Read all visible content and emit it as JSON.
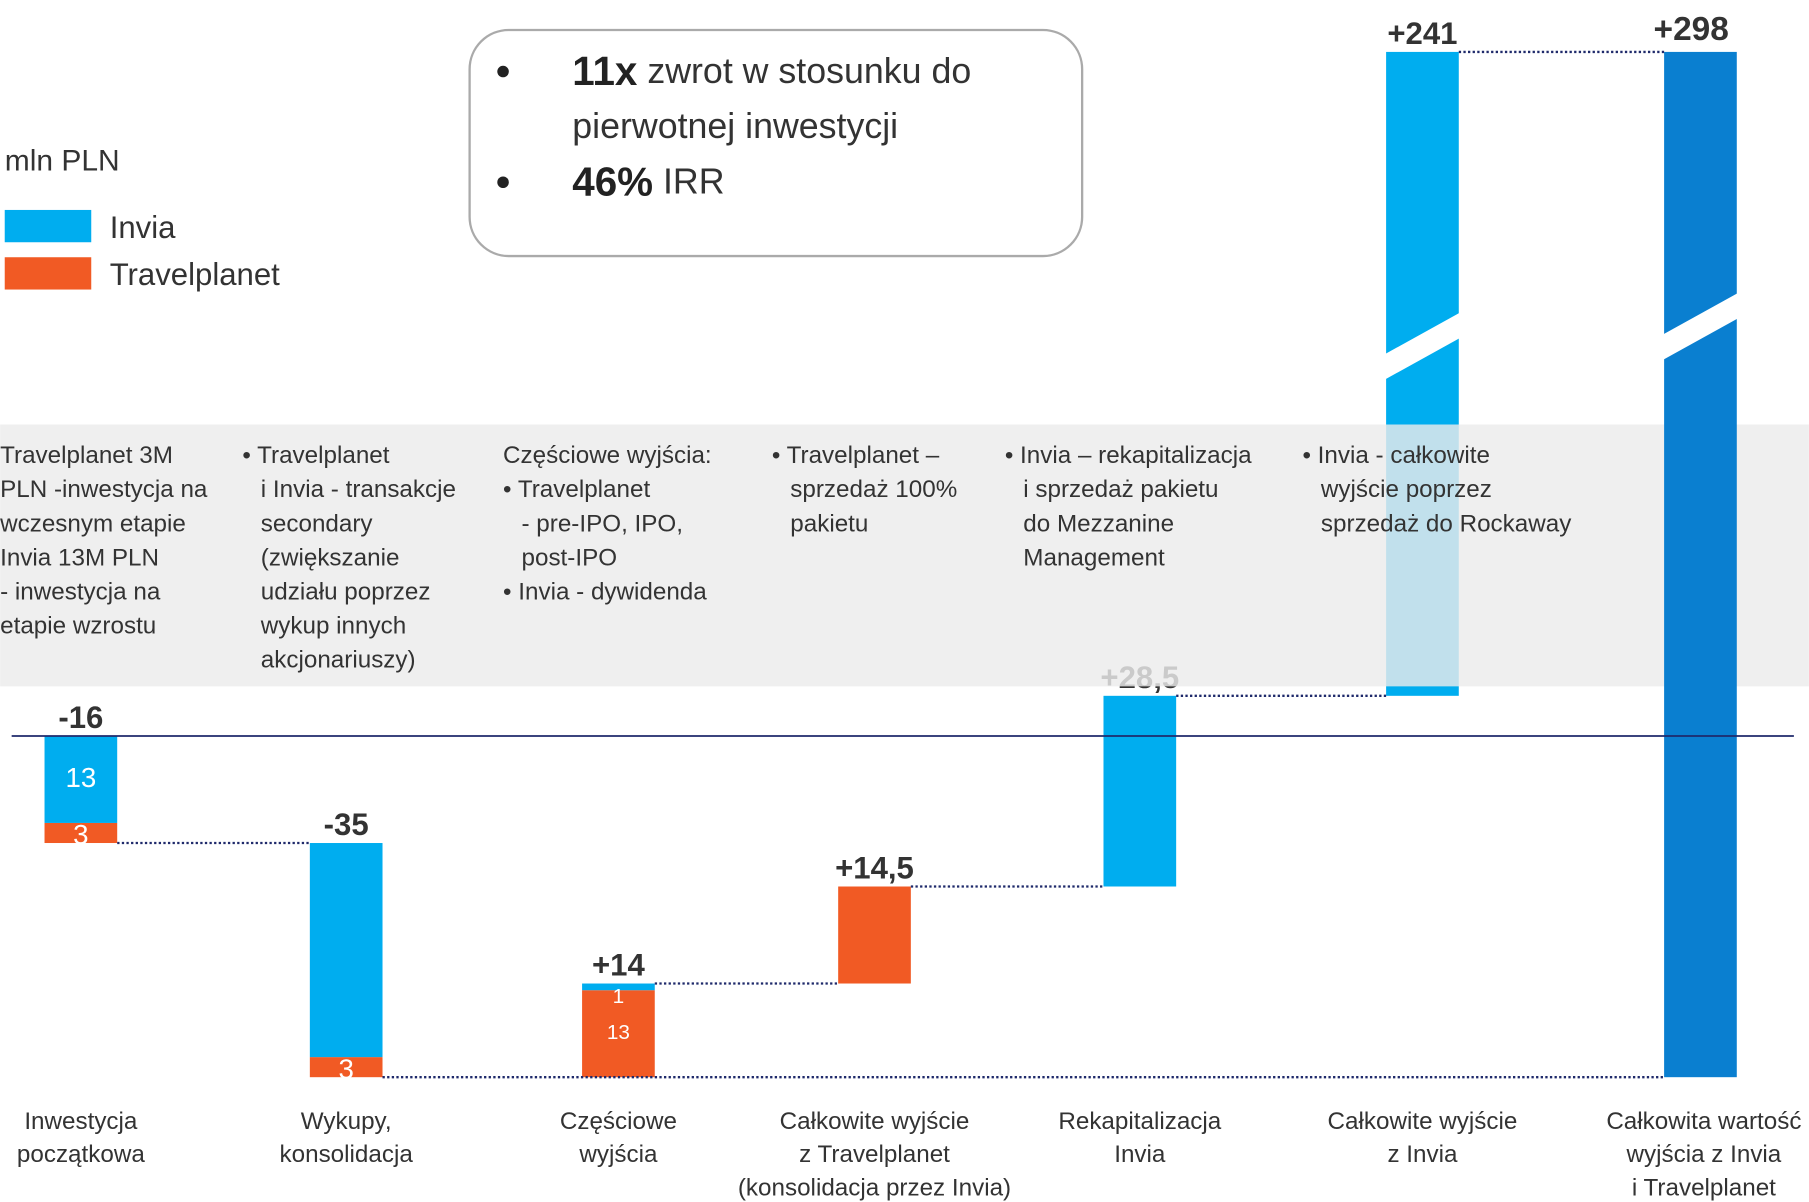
{
  "chart_data": {
    "type": "waterfall",
    "unit_label": "mln PLN",
    "categories": [
      [
        "Inwestycja",
        "początkowa"
      ],
      [
        "Wykupy,",
        "konsolidacja"
      ],
      [
        "Częściowe",
        "wyjścia"
      ],
      [
        "Całkowite wyjście",
        "z Travelplanet",
        "(konsolidacja przez Invia)"
      ],
      [
        "Rekapitalizacja",
        "Invia"
      ],
      [
        "Całkowite wyjście",
        "z Invia"
      ],
      [
        "Całkowita wartość",
        "wyjścia z Invia",
        "i Travelplanet"
      ]
    ],
    "series": [
      {
        "name": "Invia",
        "color": "#00adef",
        "values": [
          13,
          32,
          1,
          null,
          28.5,
          241,
          null
        ]
      },
      {
        "name": "Travelplanet",
        "color": "#f15a24",
        "values": [
          3,
          3,
          13,
          14.5,
          null,
          null,
          null
        ]
      }
    ],
    "totals": [
      -16,
      -35,
      14,
      14.5,
      28.5,
      241,
      298
    ],
    "value_labels": [
      "-16",
      "-35",
      "+14",
      "+14,5",
      "+28,5",
      "+241",
      "+298"
    ],
    "total_color": "#0a7fd0",
    "notes": [
      [
        "Travelplanet 3M",
        "PLN -inwestycja na",
        "wczesnym etapie",
        "Invia 13M PLN",
        "- inwestycja na",
        "etapie wzrostu"
      ],
      [
        "• Travelplanet",
        "i Invia - transakcje",
        "secondary",
        "(zwiększanie",
        "udziału poprzez",
        "wykup innych",
        "akcjonariuszy)"
      ],
      [
        "Częściowe wyjścia:",
        "• Travelplanet",
        "- pre-IPO, IPO,",
        "post-IPO",
        "• Invia - dywidenda"
      ],
      [
        "• Travelplanet –",
        "sprzedaż 100%",
        "pakietu"
      ],
      [
        "• Invia – rekapitalizacja",
        "i sprzedaż pakietu",
        "do Mezzanine",
        "Management"
      ],
      [
        "• Invia - całkowite",
        "wyjście poprzez",
        "sprzedaż do Rockaway"
      ]
    ],
    "callout": [
      {
        "bold": "11x",
        "lines": [
          "zwrot w stosunku do",
          "pierwotnej inwestycji"
        ]
      },
      {
        "bold": "46%",
        "lines": [
          "IRR"
        ]
      }
    ]
  }
}
